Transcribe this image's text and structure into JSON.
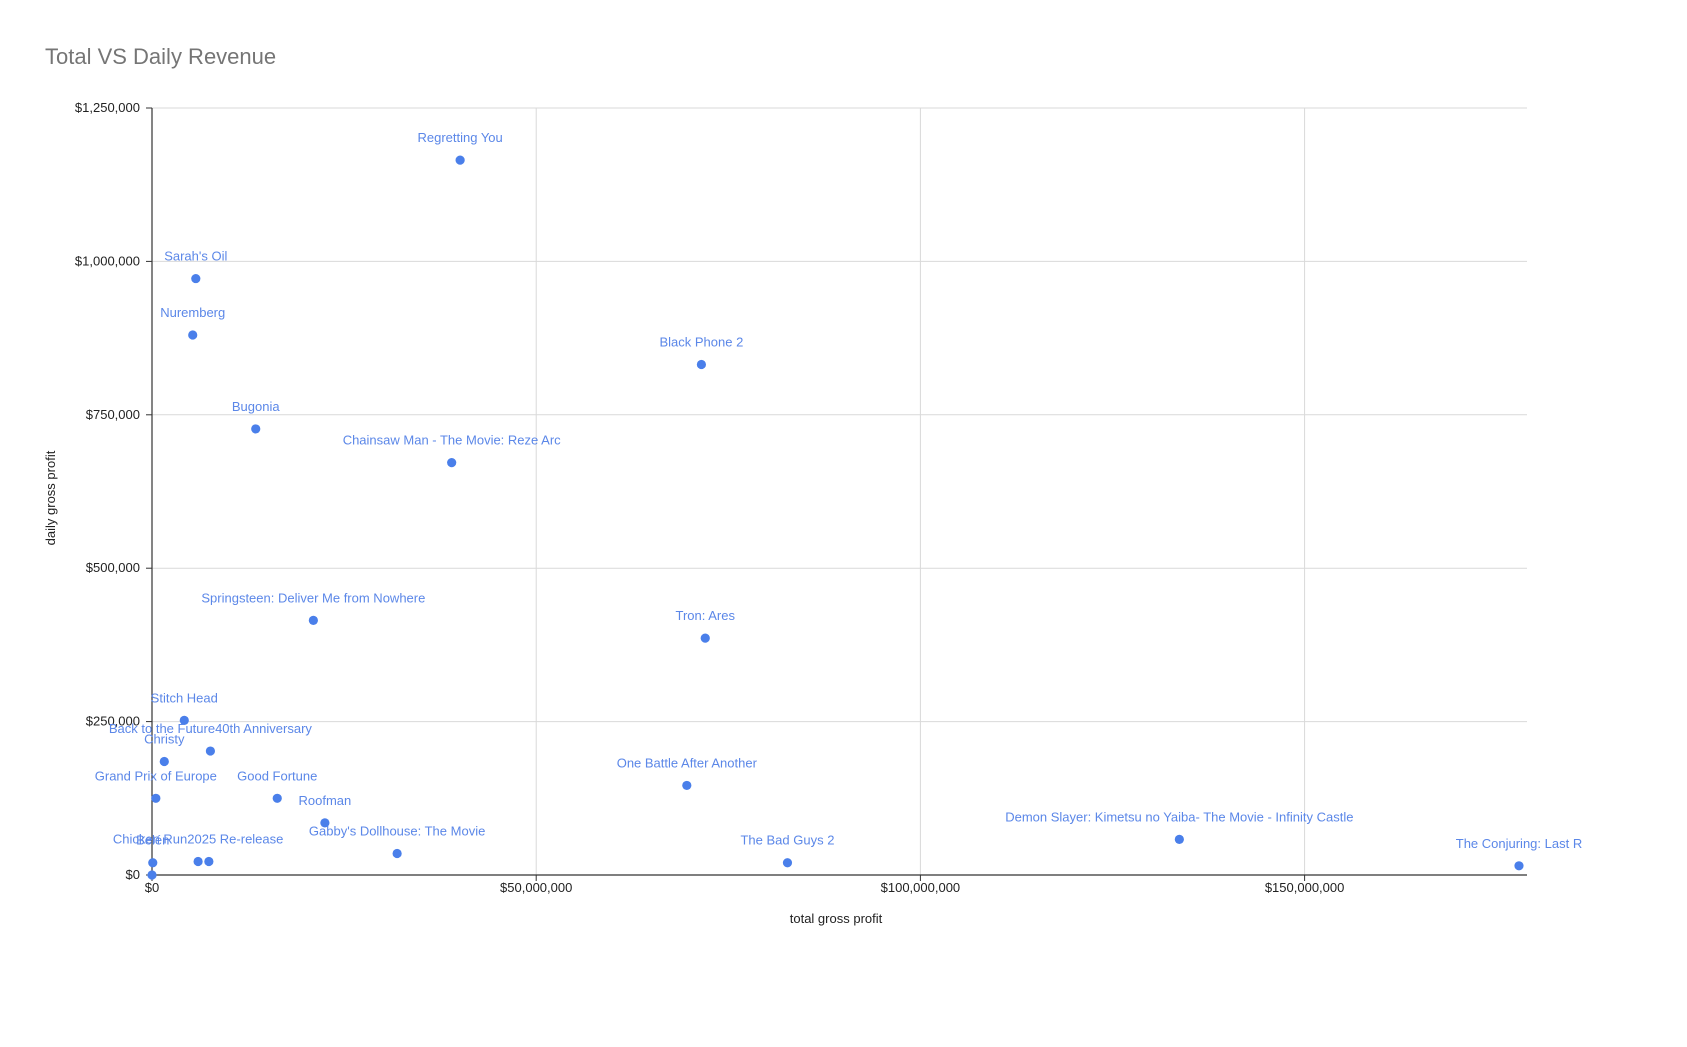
{
  "chart_data": {
    "type": "scatter",
    "title": "Total VS Daily Revenue",
    "xlabel": "total gross profit",
    "ylabel": "daily gross profit",
    "xlim": [
      0,
      179000000
    ],
    "ylim": [
      0,
      1250000
    ],
    "x_ticks": [
      {
        "value": 0,
        "label": "$0"
      },
      {
        "value": 50000000,
        "label": "$50,000,000"
      },
      {
        "value": 100000000,
        "label": "$100,000,000"
      },
      {
        "value": 150000000,
        "label": "$150,000,000"
      }
    ],
    "y_ticks": [
      {
        "value": 0,
        "label": "$0"
      },
      {
        "value": 250000,
        "label": "$250,000"
      },
      {
        "value": 500000,
        "label": "$500,000"
      },
      {
        "value": 750000,
        "label": "$750,000"
      },
      {
        "value": 1000000,
        "label": "$1,000,000"
      },
      {
        "value": 1250000,
        "label": "$1,250,000"
      }
    ],
    "grid": true,
    "point_color": "#4a7fea",
    "label_color": "#5b87e8",
    "points": [
      {
        "label": "Regretting You",
        "x": 40100000,
        "y": 1165000
      },
      {
        "label": "Sarah's Oil",
        "x": 5700000,
        "y": 972000
      },
      {
        "label": "Nuremberg",
        "x": 5300000,
        "y": 880000
      },
      {
        "label": "Black Phone 2",
        "x": 71500000,
        "y": 832000
      },
      {
        "label": "Bugonia",
        "x": 13500000,
        "y": 727000
      },
      {
        "label": "Chainsaw Man - The Movie: Reze Arc",
        "x": 39000000,
        "y": 672000
      },
      {
        "label": "Springsteen: Deliver Me from Nowhere",
        "x": 21000000,
        "y": 415000
      },
      {
        "label": "Tron: Ares",
        "x": 72000000,
        "y": 386000
      },
      {
        "label": "Stitch Head",
        "x": 4200000,
        "y": 252000
      },
      {
        "label": "Back to the Future40th Anniversary",
        "x": 7600000,
        "y": 202000
      },
      {
        "label": "Christy",
        "x": 1600000,
        "y": 185000
      },
      {
        "label": "Grand Prix of Europe",
        "x": 500000,
        "y": 125000
      },
      {
        "label": "Good Fortune",
        "x": 16300000,
        "y": 125000
      },
      {
        "label": "One Battle After Another",
        "x": 69600000,
        "y": 146000
      },
      {
        "label": "Roofman",
        "x": 22500000,
        "y": 85000
      },
      {
        "label": "Gabby's Dollhouse: The Movie",
        "x": 31900000,
        "y": 35000
      },
      {
        "label": "Demon Slayer: Kimetsu no Yaiba- The Movie - Infinity Castle",
        "x": 133700000,
        "y": 58000
      },
      {
        "label": "The Bad Guys 2",
        "x": 82700000,
        "y": 20000
      },
      {
        "label": "The Conjuring: Last R",
        "x": 177900000,
        "y": 15000
      },
      {
        "label": "Chicken Run2025 Re-release",
        "x": 6000000,
        "y": 22000
      },
      {
        "label": "Belén",
        "x": 100000,
        "y": 20000
      },
      {
        "label": "",
        "x": 7400000,
        "y": 22000
      },
      {
        "label": "",
        "x": 0,
        "y": 0
      }
    ]
  }
}
